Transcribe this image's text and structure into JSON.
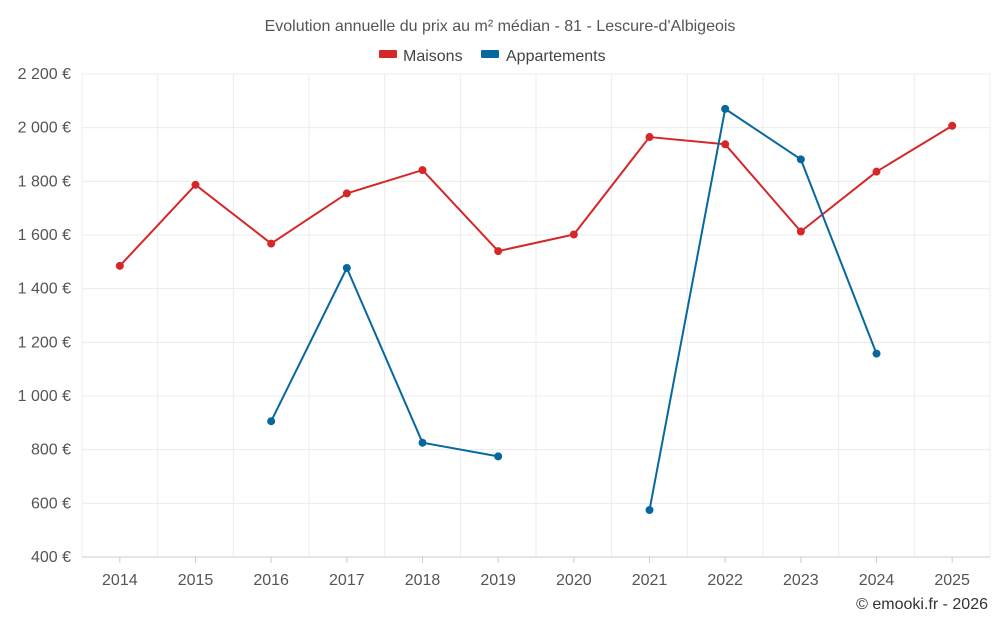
{
  "chart_data": {
    "type": "line",
    "title": "Evolution annuelle du prix au m² médian - 81 - Lescure-d'Albigeois",
    "categories": [
      "2014",
      "2015",
      "2016",
      "2017",
      "2018",
      "2019",
      "2020",
      "2021",
      "2022",
      "2023",
      "2024",
      "2025"
    ],
    "ylim": [
      400,
      2200
    ],
    "yticks": [
      400,
      600,
      800,
      1000,
      1200,
      1400,
      1600,
      1800,
      2000,
      2200
    ],
    "ytick_labels": [
      "400 €",
      "600 €",
      "800 €",
      "1 000 €",
      "1 200 €",
      "1 400 €",
      "1 600 €",
      "1 800 €",
      "2 000 €",
      "2 200 €"
    ],
    "grid": true,
    "legend_position": "top-center",
    "series": [
      {
        "name": "Maisons",
        "color": "#d62728",
        "values": [
          1485,
          1787,
          1568,
          1755,
          1842,
          1540,
          1602,
          1965,
          1938,
          1613,
          1836,
          2007
        ]
      },
      {
        "name": "Appartements",
        "color": "#07689f",
        "values": [
          null,
          null,
          906,
          1477,
          826,
          775,
          null,
          575,
          2070,
          1882,
          1158,
          null
        ]
      }
    ]
  },
  "credit": "© emooki.fr - 2026"
}
